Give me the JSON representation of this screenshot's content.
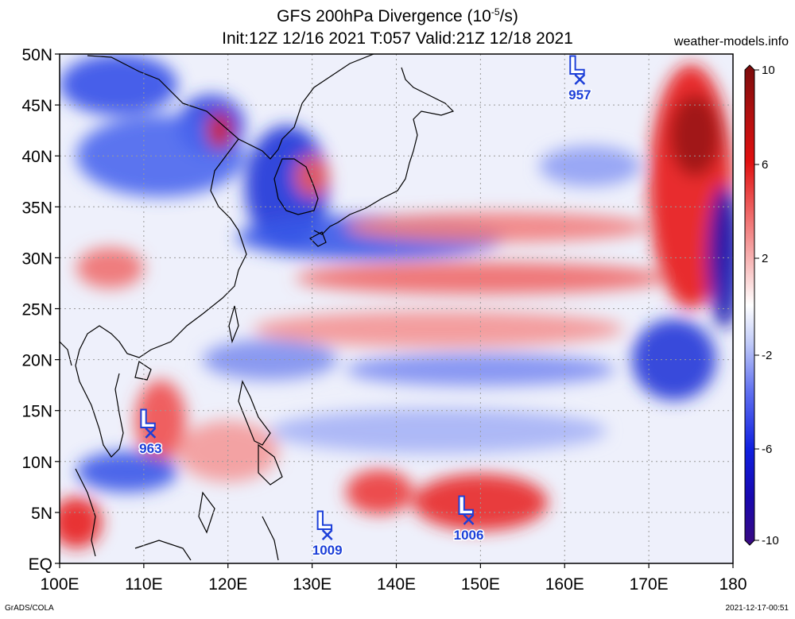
{
  "title": {
    "line1_prefix": "GFS 200hPa Divergence (10",
    "line1_exp": "-5",
    "line1_suffix": "/s)",
    "line2": "Init:12Z 12/16 2021 T:057 Valid:21Z 12/18 2021"
  },
  "site": "weather-models.info",
  "footer": {
    "left": "GrADS/COLA",
    "right": "2021-12-17-00:51"
  },
  "map": {
    "lon_range": [
      100,
      180
    ],
    "lat_range": [
      0,
      50
    ],
    "x_ticks": [
      "100E",
      "110E",
      "120E",
      "130E",
      "140E",
      "150E",
      "160E",
      "170E",
      "180"
    ],
    "y_ticks": [
      "EQ",
      "5N",
      "10N",
      "15N",
      "20N",
      "25N",
      "30N",
      "35N",
      "40N",
      "45N",
      "50N"
    ],
    "colorbar": {
      "labels": [
        "10",
        "6",
        "2",
        "-2",
        "-6",
        "-10"
      ],
      "colors": [
        "#7a0c0c",
        "#b01010",
        "#e01010",
        "#f07070",
        "#f8b8b8",
        "#ffffff",
        "#b8c4f8",
        "#6070f0",
        "#1020e0",
        "#1808b0",
        "#3a0a80"
      ]
    },
    "lows": [
      {
        "label": "L",
        "pressure": "957",
        "lon": 161.8,
        "lat": 47.5
      },
      {
        "label": "L",
        "pressure": "963",
        "lon": 110.8,
        "lat": 12.8
      },
      {
        "label": "L",
        "pressure": "1009",
        "lon": 131.8,
        "lat": 2.8
      },
      {
        "label": "L",
        "pressure": "1006",
        "lon": 148.6,
        "lat": 4.3
      }
    ],
    "fields": [
      {
        "lon": 107,
        "lat": 47,
        "rx": 7,
        "ry": 3,
        "color": "#3350e8"
      },
      {
        "lon": 118,
        "lat": 43,
        "rx": 4,
        "ry": 3,
        "color": "#2a40e0"
      },
      {
        "lon": 112,
        "lat": 40,
        "rx": 10,
        "ry": 4,
        "color": "#4a66ee"
      },
      {
        "lon": 127,
        "lat": 37,
        "rx": 5,
        "ry": 6,
        "color": "#2035d8"
      },
      {
        "lon": 137,
        "lat": 32,
        "rx": 16,
        "ry": 2.2,
        "color": "#3a5ae8"
      },
      {
        "lon": 150,
        "lat": 28,
        "rx": 22,
        "ry": 1.6,
        "color": "#f06a6a"
      },
      {
        "lon": 152,
        "lat": 33,
        "rx": 18,
        "ry": 1.5,
        "color": "#f28080"
      },
      {
        "lon": 145,
        "lat": 23,
        "rx": 22,
        "ry": 1.8,
        "color": "#f49494"
      },
      {
        "lon": 150,
        "lat": 19,
        "rx": 16,
        "ry": 1.6,
        "color": "#7e8ef2"
      },
      {
        "lon": 145,
        "lat": 13,
        "rx": 20,
        "ry": 2.2,
        "color": "#a6b2f6"
      },
      {
        "lon": 175,
        "lat": 37,
        "rx": 5,
        "ry": 12,
        "color": "#e81818"
      },
      {
        "lon": 175.5,
        "lat": 42,
        "rx": 3,
        "ry": 4,
        "color": "#9a1414"
      },
      {
        "lon": 179,
        "lat": 30,
        "rx": 2,
        "ry": 7,
        "color": "#1a14b0"
      },
      {
        "lon": 173,
        "lat": 20,
        "rx": 5,
        "ry": 4,
        "color": "#2436d8"
      },
      {
        "lon": 150,
        "lat": 6,
        "rx": 8,
        "ry": 2.8,
        "color": "#e82a2a"
      },
      {
        "lon": 138,
        "lat": 7,
        "rx": 4,
        "ry": 2.2,
        "color": "#ec3a3a"
      },
      {
        "lon": 112,
        "lat": 14,
        "rx": 3,
        "ry": 4,
        "color": "#f05050"
      },
      {
        "lon": 102,
        "lat": 4,
        "rx": 3,
        "ry": 2.5,
        "color": "#e82020"
      },
      {
        "lon": 119,
        "lat": 42.5,
        "rx": 1.5,
        "ry": 1.8,
        "color": "#d42020"
      },
      {
        "lon": 130,
        "lat": 38,
        "rx": 2,
        "ry": 2,
        "color": "#f05a5a"
      },
      {
        "lon": 106,
        "lat": 29,
        "rx": 4,
        "ry": 2,
        "color": "#f07070"
      },
      {
        "lon": 108,
        "lat": 9,
        "rx": 6,
        "ry": 2,
        "color": "#3a56e8"
      },
      {
        "lon": 125,
        "lat": 20,
        "rx": 8,
        "ry": 2,
        "color": "#8090f0"
      },
      {
        "lon": 163,
        "lat": 39,
        "rx": 6,
        "ry": 2,
        "color": "#90a0f4"
      },
      {
        "lon": 120,
        "lat": 11,
        "rx": 6,
        "ry": 3,
        "color": "#f49a9a"
      }
    ]
  }
}
